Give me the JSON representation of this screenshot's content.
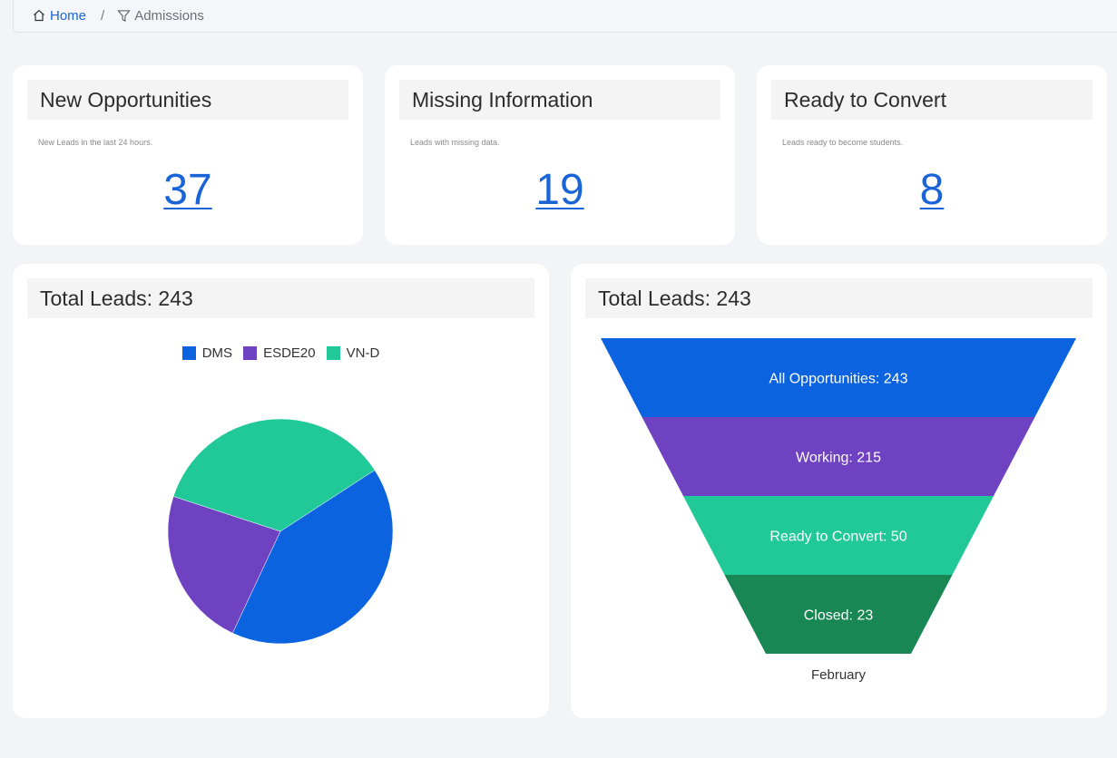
{
  "breadcrumb": {
    "home_label": "Home",
    "separator": "/",
    "current_label": "Admissions"
  },
  "stats": [
    {
      "title": "New Opportunities",
      "subtitle": "New Leads in the last 24 hours.",
      "value": "37"
    },
    {
      "title": "Missing Information",
      "subtitle": "Leads with missing data.",
      "value": "19"
    },
    {
      "title": "Ready to Convert",
      "subtitle": "Leads ready to become students.",
      "value": "8"
    }
  ],
  "pie_card": {
    "title": "Total Leads: 243"
  },
  "funnel_card": {
    "title": "Total Leads: 243"
  },
  "chart_data": [
    {
      "type": "pie",
      "legend_position": "top",
      "series": [
        {
          "name": "DMS",
          "value": 100,
          "color": "#0b63e0"
        },
        {
          "name": "ESDE20",
          "value": 56,
          "color": "#6f42c1"
        },
        {
          "name": "VN-D",
          "value": 87,
          "color": "#20c997"
        }
      ]
    },
    {
      "type": "funnel",
      "xlabel": "February",
      "stages": [
        {
          "label": "All Opportunities: 243",
          "name": "All Opportunities",
          "value": 243,
          "color": "#0b63e0"
        },
        {
          "label": "Working: 215",
          "name": "Working",
          "value": 215,
          "color": "#6f42c1"
        },
        {
          "label": "Ready to Convert: 50",
          "name": "Ready to Convert",
          "value": 50,
          "color": "#20c997"
        },
        {
          "label": "Closed: 23",
          "name": "Closed",
          "value": 23,
          "color": "#198754"
        }
      ]
    }
  ]
}
